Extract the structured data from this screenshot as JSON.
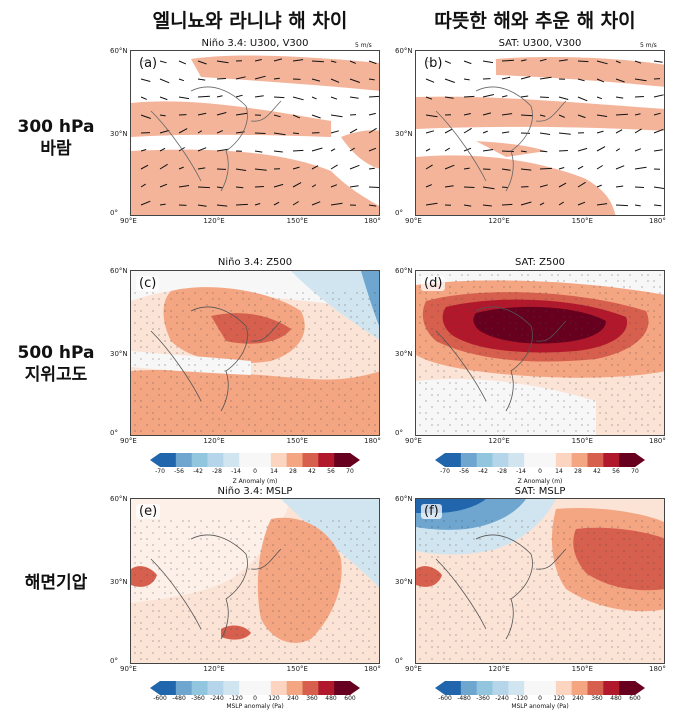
{
  "columns": {
    "left_title": "엘니뇨와 라니냐 해 차이",
    "right_title": "따뜻한 해와 추운 해 차이"
  },
  "rows": {
    "wind_line1": "300 hPa",
    "wind_line2": "바람",
    "geo_line1": "500 hPa",
    "geo_line2": "지위고도",
    "slp_line1": "해면기압"
  },
  "panels": {
    "a": {
      "label": "(a)",
      "title": "Niño 3.4: U300, V300"
    },
    "b": {
      "label": "(b)",
      "title": "SAT: U300, V300"
    },
    "c": {
      "label": "(c)",
      "title": "Niño 3.4: Z500"
    },
    "d": {
      "label": "(d)",
      "title": "SAT: Z500"
    },
    "e": {
      "label": "(e)",
      "title": "Niño 3.4: MSLP"
    },
    "f": {
      "label": "(f)",
      "title": "SAT: MSLP"
    }
  },
  "axes": {
    "lon_ticks": [
      "90°E",
      "120°E",
      "150°E",
      "180°"
    ],
    "lat_ticks": [
      "60°N",
      "30°N",
      "0°"
    ]
  },
  "wind_scale": "5 m/s",
  "colorbars": {
    "z500": {
      "label": "Z Anomaly (m)",
      "ticks": [
        "-70",
        "-56",
        "-42",
        "-28",
        "-14",
        "0",
        "14",
        "28",
        "42",
        "56",
        "70"
      ]
    },
    "mslp": {
      "label": "MSLP anomaly (Pa)",
      "ticks": [
        "-600",
        "-480",
        "-360",
        "-240",
        "-120",
        "0",
        "120",
        "240",
        "360",
        "480",
        "600"
      ]
    }
  },
  "colors": {
    "blue_dark": "#2166ac",
    "blue_mid": "#6ea6d0",
    "blue_light": "#d1e5f0",
    "white": "#f7f7f7",
    "red_light": "#fbd5c0",
    "red_mid": "#f4a582",
    "red_strong": "#d6604d",
    "red_dark": "#b2182b",
    "red_darkest": "#67001f",
    "wind_shade": "#f4b49a"
  }
}
